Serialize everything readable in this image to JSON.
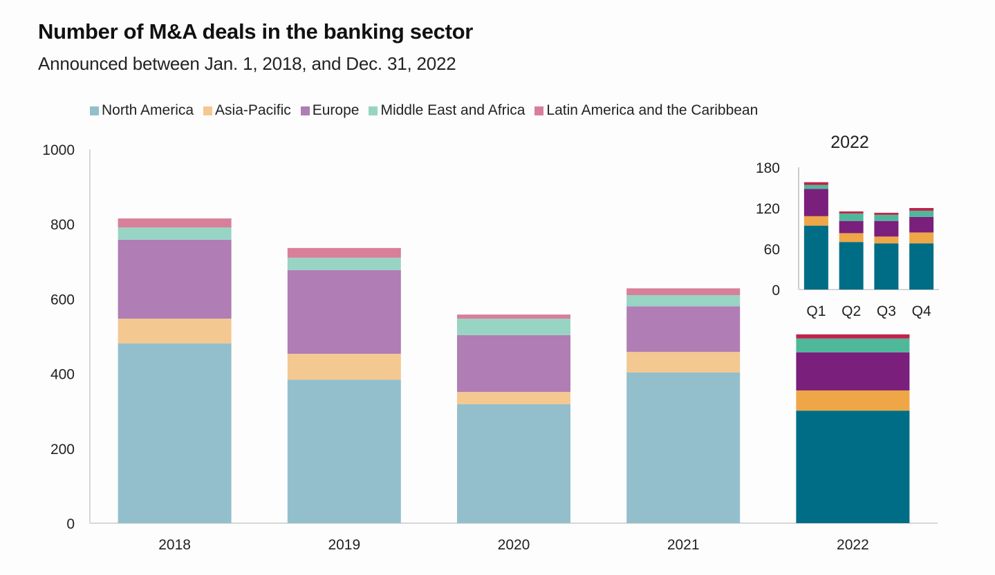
{
  "chart_data": [
    {
      "type": "bar",
      "stacked": true,
      "title": "Number of M&A deals in the banking sector",
      "subtitle": "Announced between Jan. 1, 2018, and Dec. 31, 2022",
      "xlabel": "",
      "ylabel": "",
      "ylim": [
        0,
        1000
      ],
      "yticks": [
        0,
        200,
        400,
        600,
        800,
        1000
      ],
      "grid": false,
      "legend_position": "top",
      "categories": [
        "2018",
        "2019",
        "2020",
        "2021",
        "2022"
      ],
      "series": [
        {
          "name": "North America",
          "values": [
            481,
            384,
            318,
            403,
            301
          ],
          "color": "#93bfcc",
          "highlight_color": "#006d87"
        },
        {
          "name": "Asia-Pacific",
          "values": [
            66,
            69,
            33,
            55,
            54
          ],
          "color": "#f4c891",
          "highlight_color": "#efa646"
        },
        {
          "name": "Europe",
          "values": [
            211,
            224,
            152,
            122,
            102
          ],
          "color": "#b07db5",
          "highlight_color": "#7a1f7c"
        },
        {
          "name": "Middle East and Africa",
          "values": [
            33,
            33,
            44,
            30,
            37
          ],
          "color": "#98d4c4",
          "highlight_color": "#4fb89a"
        },
        {
          "name": "Latin America and the Caribbean",
          "values": [
            24,
            26,
            11,
            18,
            11
          ],
          "color": "#d87f99",
          "highlight_color": "#c1224b"
        }
      ],
      "highlighted_category": "2022"
    },
    {
      "type": "bar",
      "stacked": true,
      "title": "2022",
      "ylim": [
        0,
        180
      ],
      "yticks": [
        0,
        60,
        120,
        180
      ],
      "grid": false,
      "categories": [
        "Q1",
        "Q2",
        "Q3",
        "Q4"
      ],
      "series": [
        {
          "name": "North America",
          "values": [
            94,
            70,
            68,
            68
          ],
          "color": "#006d87"
        },
        {
          "name": "Asia-Pacific",
          "values": [
            14,
            13,
            10,
            16
          ],
          "color": "#efa646"
        },
        {
          "name": "Europe",
          "values": [
            40,
            18,
            23,
            23
          ],
          "color": "#7a1f7c"
        },
        {
          "name": "Middle East and Africa",
          "values": [
            6,
            11,
            9,
            9
          ],
          "color": "#4fb89a"
        },
        {
          "name": "Latin America and the Caribbean",
          "values": [
            4,
            3,
            3,
            4
          ],
          "color": "#c1224b"
        }
      ]
    }
  ],
  "legend": [
    {
      "label": "North America",
      "color": "#93bfcc"
    },
    {
      "label": "Asia-Pacific",
      "color": "#f4c891"
    },
    {
      "label": "Europe",
      "color": "#b07db5"
    },
    {
      "label": "Middle East and Africa",
      "color": "#98d4c4"
    },
    {
      "label": "Latin America and the Caribbean",
      "color": "#d87f99"
    }
  ]
}
